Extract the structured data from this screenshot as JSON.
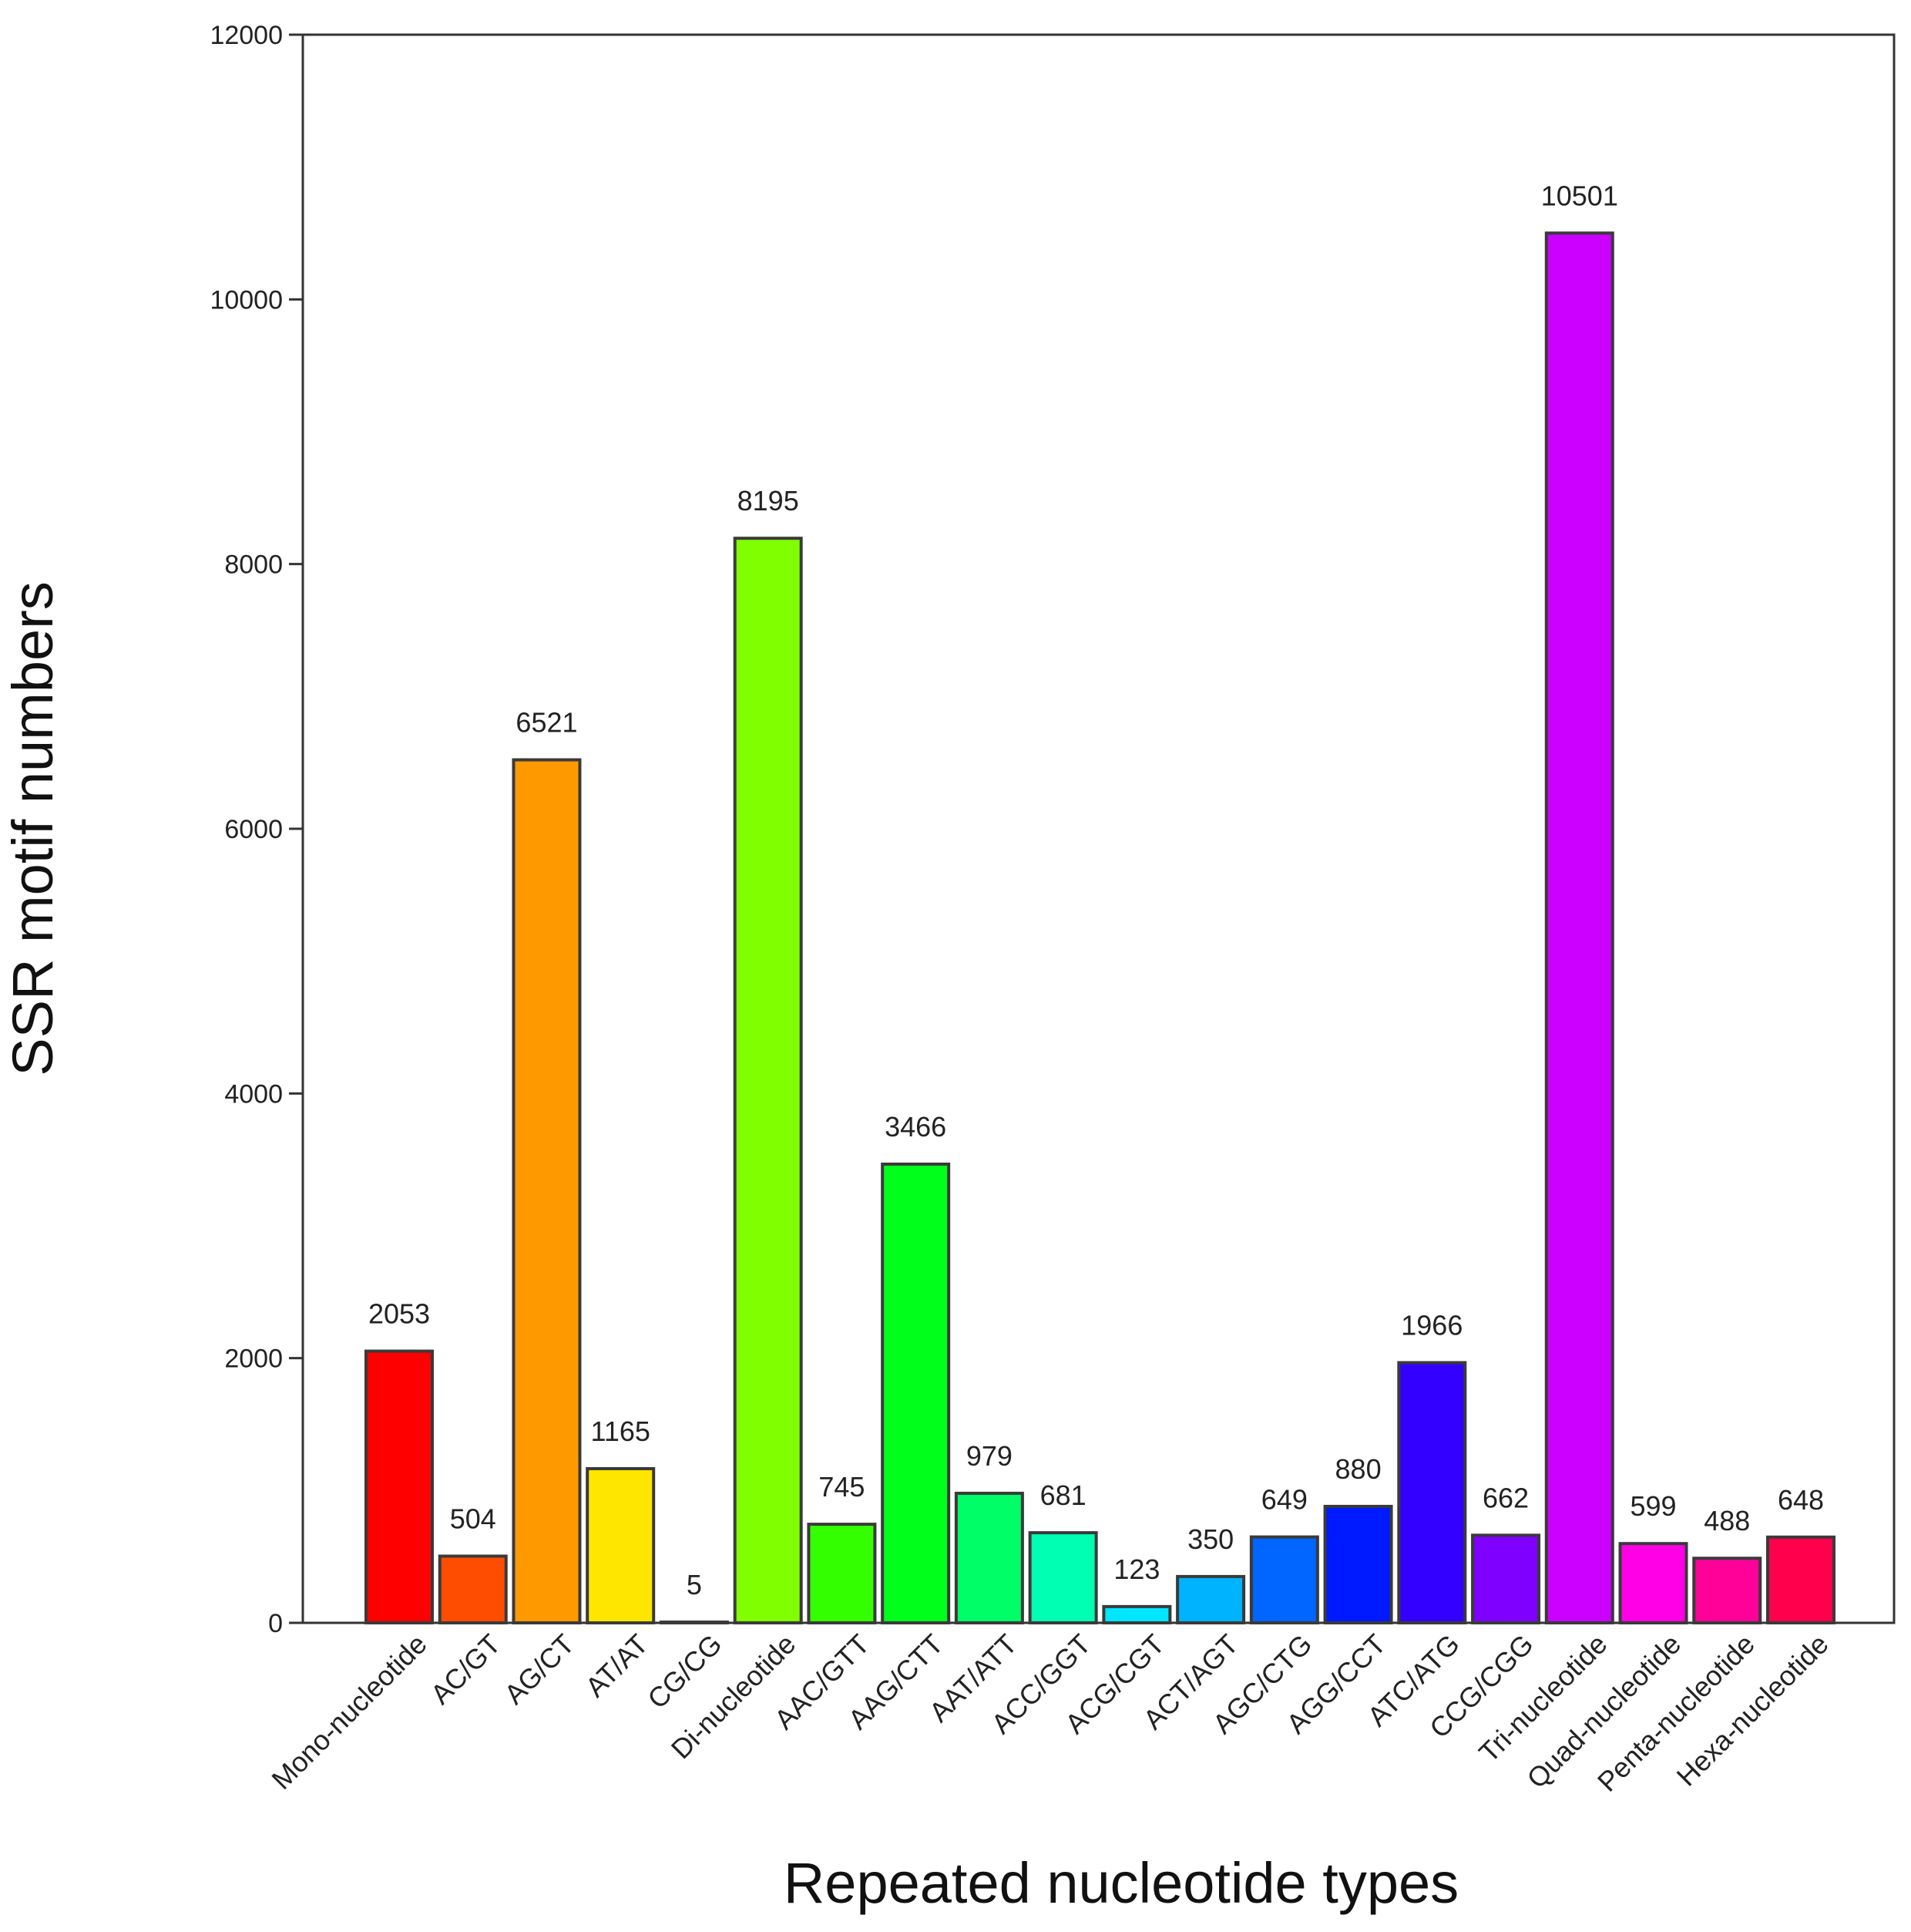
{
  "chart_data": {
    "type": "bar",
    "title": "",
    "xlabel": "Repeated nucleotide types",
    "ylabel": "SSR motif numbers",
    "ylim": [
      0,
      12000
    ],
    "yticks": [
      0,
      2000,
      4000,
      6000,
      8000,
      10000,
      12000
    ],
    "yticks_text": [
      "0",
      "2000",
      "4000",
      "6000",
      "8000",
      "10000",
      "12000"
    ],
    "grid": false,
    "categories": [
      "Mono-nucleotide",
      "AC/GT",
      "AG/CT",
      "AT/AT",
      "CG/CG",
      "Di-nucleotide",
      "AAC/GTT",
      "AAG/CTT",
      "AAT/ATT",
      "ACC/GGT",
      "ACG/CGT",
      "ACT/AGT",
      "AGC/CTG",
      "AGG/CCT",
      "ATC/ATG",
      "CCG/CGG",
      "Tri-nucleotide",
      "Quad-nucleotide",
      "Penta-nucleotide",
      "Hexa-nucleotide"
    ],
    "values": [
      2053,
      504,
      6521,
      1165,
      5,
      8195,
      745,
      3466,
      979,
      681,
      123,
      350,
      649,
      880,
      1966,
      662,
      10501,
      599,
      488,
      648
    ],
    "value_labels": [
      "2053",
      "504",
      "6521",
      "1165",
      "5",
      "8195",
      "745",
      "3466",
      "979",
      "681",
      "123",
      "350",
      "649",
      "880",
      "1966",
      "662",
      "10501",
      "599",
      "488",
      "648"
    ],
    "colors": [
      "#ff0000",
      "#ff4d00",
      "#ff9900",
      "#ffe600",
      "#cccc00",
      "#80ff00",
      "#33ff00",
      "#00ff1a",
      "#00ff66",
      "#00ffb3",
      "#00e6ff",
      "#00b3ff",
      "#0066ff",
      "#001aff",
      "#3300ff",
      "#8000ff",
      "#cc00ff",
      "#ff00e6",
      "#ff0099",
      "#ff004d"
    ]
  }
}
